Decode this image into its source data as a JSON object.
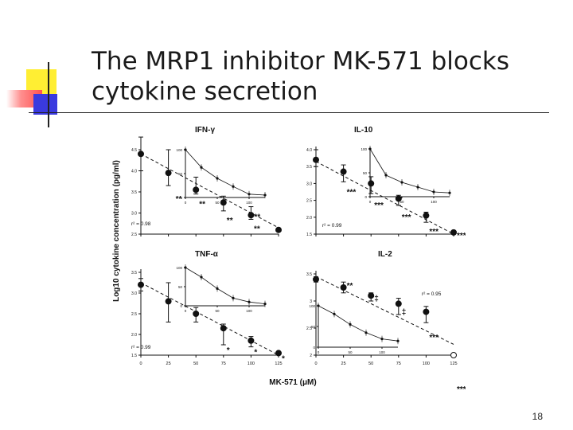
{
  "slide": {
    "title_lines": [
      "The MRP1 inhibitor MK-571 blocks",
      "cytokine secretion"
    ],
    "page_number": "18"
  },
  "figure": {
    "shared_ylabel": "Log10 cytokine concentration (pg/ml)",
    "shared_xlabel": "MK-571 (μM)"
  },
  "chart_data": [
    {
      "type": "scatter",
      "title": "IFN-γ",
      "x": [
        0,
        25,
        50,
        75,
        100,
        125
      ],
      "y": [
        4.4,
        3.95,
        3.55,
        3.25,
        2.95,
        2.6
      ],
      "yerr_up": [
        0.4,
        0.55,
        0.3,
        0.15,
        0.2,
        0
      ],
      "yerr_down": [
        0.4,
        0.3,
        0.1,
        0.2,
        0.1,
        0
      ],
      "fit_line": [
        [
          0,
          4.4
        ],
        [
          125,
          2.65
        ]
      ],
      "r2_text": "r² = 0.98",
      "significance": [
        "",
        "**",
        "**",
        "**",
        "**",
        "**"
      ],
      "xticks": [
        0,
        25,
        50,
        75,
        100,
        125
      ],
      "yticks": [
        2.5,
        3.0,
        3.5,
        4.0,
        4.5
      ],
      "ytick_labels": [
        "2.5",
        "3.0",
        "3.5",
        "4.0",
        "4.5"
      ],
      "xlim": [
        0,
        125
      ],
      "ylim": [
        2.5,
        4.5
      ],
      "inset": {
        "x": [
          0,
          25,
          50,
          75,
          100,
          125
        ],
        "y": [
          100,
          63,
          40,
          23,
          7,
          5
        ],
        "xticks": [
          0,
          50,
          100
        ],
        "yticks": [
          0,
          50,
          100
        ],
        "xlim": [
          0,
          125
        ],
        "ylim": [
          0,
          100
        ]
      }
    },
    {
      "type": "scatter",
      "title": "IL-10",
      "x": [
        0,
        25,
        50,
        75,
        100,
        125
      ],
      "y": [
        3.7,
        3.35,
        3.0,
        2.55,
        2.05,
        1.55
      ],
      "yerr_up": [
        0.3,
        0.2,
        0.2,
        0.1,
        0.1,
        0
      ],
      "yerr_down": [
        0.2,
        0.3,
        0.3,
        0.2,
        0.2,
        0.05
      ],
      "fit_line": [
        [
          0,
          3.65
        ],
        [
          125,
          1.5
        ]
      ],
      "r2_text": "r² = 0.99",
      "significance": [
        "",
        "***",
        "***",
        "***",
        "***",
        "***"
      ],
      "xticks": [
        0,
        25,
        50,
        75,
        100,
        125
      ],
      "yticks": [
        1.5,
        2.0,
        2.5,
        3.0,
        3.5,
        4.0
      ],
      "ytick_labels": [
        "1.5",
        "2.0",
        "2.5",
        "3.0",
        "3.5",
        "4.0"
      ],
      "xlim": [
        0,
        125
      ],
      "ylim": [
        1.5,
        4.0
      ],
      "inset": {
        "x": [
          0,
          25,
          50,
          75,
          100,
          125
        ],
        "y": [
          100,
          45,
          30,
          20,
          10,
          8
        ],
        "xticks": [
          0,
          50,
          100
        ],
        "yticks": [
          0,
          50,
          100
        ],
        "xlim": [
          0,
          125
        ],
        "ylim": [
          0,
          100
        ]
      }
    },
    {
      "type": "scatter",
      "title": "TNF-α",
      "x": [
        0,
        25,
        50,
        75,
        100,
        125
      ],
      "y": [
        3.2,
        2.8,
        2.5,
        2.15,
        1.85,
        1.55
      ],
      "yerr_up": [
        0.15,
        0.45,
        0.15,
        0.1,
        0.1,
        0
      ],
      "yerr_down": [
        0.15,
        0.5,
        0.2,
        0.4,
        0.15,
        0
      ],
      "fit_line": [
        [
          0,
          3.25
        ],
        [
          125,
          1.5
        ]
      ],
      "r2_text": "r² = 0.99",
      "significance": [
        "",
        "",
        "",
        "*",
        "*",
        "*"
      ],
      "xticks": [
        0,
        25,
        50,
        75,
        100,
        125
      ],
      "yticks": [
        1.5,
        2.0,
        2.5,
        3.0,
        3.5
      ],
      "ytick_labels": [
        "1.5",
        "2.0",
        "2.5",
        "3.0",
        "3.5"
      ],
      "xlim": [
        0,
        125
      ],
      "ylim": [
        1.5,
        3.5
      ],
      "inset": {
        "x": [
          0,
          25,
          50,
          75,
          100,
          125
        ],
        "y": [
          100,
          75,
          45,
          20,
          10,
          5
        ],
        "xticks": [
          0,
          50,
          100
        ],
        "yticks": [
          0,
          50,
          100
        ],
        "xlim": [
          0,
          125
        ],
        "ylim": [
          0,
          100
        ]
      }
    },
    {
      "type": "scatter",
      "title": "IL-2",
      "x": [
        0,
        25,
        50,
        75,
        100,
        125
      ],
      "y": [
        3.4,
        3.25,
        3.1,
        2.95,
        2.8,
        2.0
      ],
      "yerr_up": [
        0.05,
        0.1,
        0.05,
        0.1,
        0.1,
        0
      ],
      "yerr_down": [
        0.05,
        0.1,
        0.1,
        0.2,
        0.2,
        0
      ],
      "fit_line": [
        [
          0,
          3.45
        ],
        [
          125,
          2.2
        ]
      ],
      "r2_text": "r² = 0.95",
      "significance": [
        "",
        "**",
        "‡",
        "‡",
        "***",
        "***"
      ],
      "xticks": [
        0,
        25,
        50,
        75,
        100,
        125
      ],
      "yticks": [
        2.0,
        2.5,
        3.0,
        3.5
      ],
      "ytick_labels": [
        "2",
        "2.5",
        "3",
        "3.5"
      ],
      "xlim": [
        0,
        125
      ],
      "ylim": [
        2.0,
        3.5
      ],
      "inset": {
        "x": [
          0,
          25,
          50,
          75,
          100,
          125
        ],
        "y": [
          100,
          80,
          55,
          35,
          20,
          15
        ],
        "xticks": [
          0,
          50,
          100
        ],
        "yticks": [
          0,
          50,
          100
        ],
        "xlim": [
          0,
          125
        ],
        "ylim": [
          0,
          100
        ]
      }
    }
  ]
}
